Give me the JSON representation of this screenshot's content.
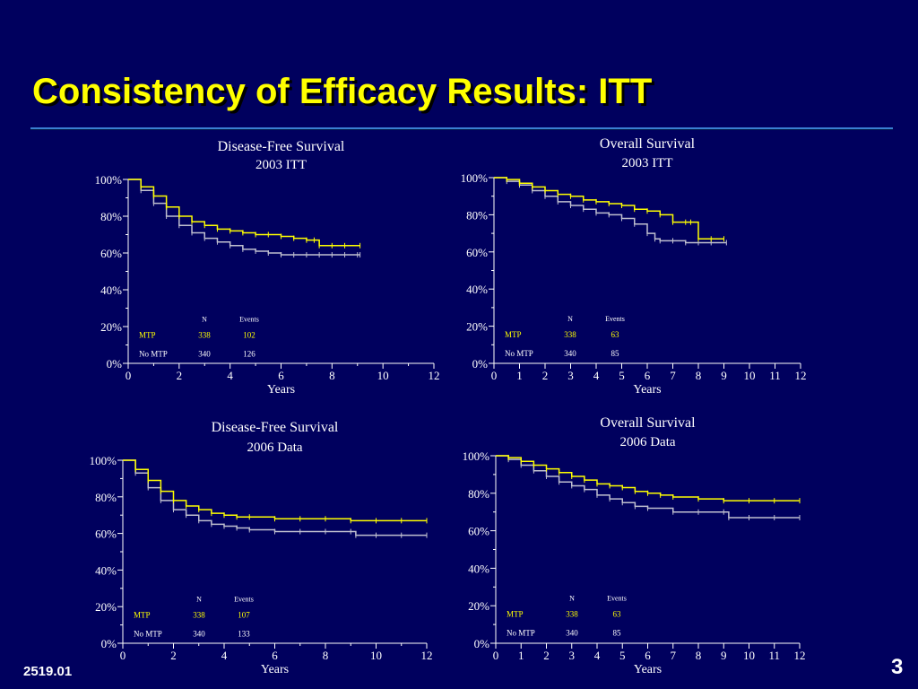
{
  "slide": {
    "title": "Consistency of Efficacy Results: ITT",
    "footer_code": "2519.01",
    "page_number": "3"
  },
  "colors": {
    "background": "#00005e",
    "title": "#ffff00",
    "mtp": "#ffff00",
    "no_mtp": "#bfbfcf",
    "axis": "#ffffff"
  },
  "chart_data": [
    {
      "type": "line",
      "title": "Disease-Free Survival",
      "subtitle": "2003 ITT",
      "xlabel": "Years",
      "ylabel": "",
      "xlim": [
        0,
        12
      ],
      "ylim": [
        0,
        100
      ],
      "x_ticks": [
        "0",
        "2",
        "4",
        "6",
        "8",
        "10",
        "12"
      ],
      "y_ticks": [
        "0%",
        "20%",
        "40%",
        "60%",
        "80%",
        "100%"
      ],
      "table": {
        "headers": [
          "N",
          "Events"
        ],
        "rows": [
          {
            "label": "MTP",
            "n": "338",
            "events": "102"
          },
          {
            "label": "No MTP",
            "n": "340",
            "events": "126"
          }
        ]
      },
      "series": [
        {
          "name": "MTP",
          "x": [
            0,
            0.5,
            1,
            1.5,
            2,
            2.5,
            3,
            3.5,
            4,
            4.5,
            5,
            5.5,
            6,
            6.5,
            7,
            7.3,
            7.5,
            8,
            8.5,
            9.1
          ],
          "y": [
            100,
            96,
            91,
            85,
            80,
            77,
            75,
            73,
            72,
            71,
            70,
            70,
            69,
            68,
            67,
            67,
            64,
            64,
            64,
            64
          ]
        },
        {
          "name": "No MTP",
          "x": [
            0,
            0.5,
            1,
            1.5,
            2,
            2.5,
            3,
            3.5,
            4,
            4.5,
            5,
            5.5,
            6,
            6.5,
            7,
            7.5,
            8,
            8.5,
            9,
            9.1
          ],
          "y": [
            100,
            94,
            87,
            80,
            75,
            71,
            68,
            66,
            64,
            62,
            61,
            60,
            59,
            59,
            59,
            59,
            59,
            59,
            59,
            59
          ]
        }
      ]
    },
    {
      "type": "line",
      "title": "Overall Survival",
      "subtitle": "2003 ITT",
      "xlabel": "Years",
      "ylabel": "",
      "xlim": [
        0,
        12
      ],
      "ylim": [
        0,
        100
      ],
      "x_ticks": [
        "0",
        "1",
        "2",
        "3",
        "4",
        "5",
        "6",
        "7",
        "8",
        "9",
        "10",
        "11",
        "12"
      ],
      "y_ticks": [
        "0%",
        "20%",
        "40%",
        "60%",
        "80%",
        "100%"
      ],
      "table": {
        "headers": [
          "N",
          "Events"
        ],
        "rows": [
          {
            "label": "MTP",
            "n": "338",
            "events": "63"
          },
          {
            "label": "No MTP",
            "n": "340",
            "events": "85"
          }
        ]
      },
      "series": [
        {
          "name": "MTP",
          "x": [
            0,
            0.5,
            1,
            1.5,
            2,
            2.5,
            3,
            3.5,
            4,
            4.5,
            5,
            5.5,
            6,
            6.5,
            7,
            7.5,
            7.7,
            8,
            8.5,
            9
          ],
          "y": [
            100,
            99,
            97,
            95,
            93,
            91,
            90,
            88,
            87,
            86,
            85,
            83,
            82,
            80,
            76,
            76,
            76,
            67,
            67,
            67
          ]
        },
        {
          "name": "No MTP",
          "x": [
            0,
            0.5,
            1,
            1.5,
            2,
            2.5,
            3,
            3.5,
            4,
            4.5,
            5,
            5.5,
            6,
            6.3,
            6.5,
            7,
            7.5,
            8,
            8.5,
            9.1
          ],
          "y": [
            100,
            98,
            96,
            93,
            90,
            87,
            85,
            83,
            81,
            80,
            78,
            75,
            70,
            67,
            66,
            66,
            65,
            65,
            65,
            65
          ]
        }
      ]
    },
    {
      "type": "line",
      "title": "Disease-Free Survival",
      "subtitle": "2006 Data",
      "xlabel": "Years",
      "ylabel": "",
      "xlim": [
        0,
        12
      ],
      "ylim": [
        0,
        100
      ],
      "x_ticks": [
        "0",
        "2",
        "4",
        "6",
        "8",
        "10",
        "12"
      ],
      "y_ticks": [
        "0%",
        "20%",
        "40%",
        "60%",
        "80%",
        "100%"
      ],
      "table": {
        "headers": [
          "N",
          "Events"
        ],
        "rows": [
          {
            "label": "MTP",
            "n": "338",
            "events": "107"
          },
          {
            "label": "No MTP",
            "n": "340",
            "events": "133"
          }
        ]
      },
      "series": [
        {
          "name": "MTP",
          "x": [
            0,
            0.5,
            1,
            1.5,
            2,
            2.5,
            3,
            3.5,
            4,
            4.5,
            5,
            6,
            7,
            8,
            9,
            10,
            11,
            12
          ],
          "y": [
            100,
            95,
            89,
            83,
            78,
            75,
            73,
            71,
            70,
            69,
            69,
            68,
            68,
            68,
            67,
            67,
            67,
            67
          ]
        },
        {
          "name": "No MTP",
          "x": [
            0,
            0.5,
            1,
            1.5,
            2,
            2.5,
            3,
            3.5,
            4,
            4.5,
            5,
            6,
            7,
            8,
            9,
            9.2,
            10,
            11,
            12
          ],
          "y": [
            100,
            93,
            85,
            78,
            73,
            70,
            67,
            65,
            64,
            63,
            62,
            61,
            61,
            61,
            61,
            59,
            59,
            59,
            59
          ]
        }
      ]
    },
    {
      "type": "line",
      "title": "Overall Survival",
      "subtitle": "2006 Data",
      "xlabel": "Years",
      "ylabel": "",
      "xlim": [
        0,
        12
      ],
      "ylim": [
        0,
        100
      ],
      "x_ticks": [
        "0",
        "1",
        "2",
        "3",
        "4",
        "5",
        "6",
        "7",
        "8",
        "9",
        "10",
        "11",
        "12"
      ],
      "y_ticks": [
        "0%",
        "20%",
        "40%",
        "60%",
        "80%",
        "100%"
      ],
      "table": {
        "headers": [
          "N",
          "Events"
        ],
        "rows": [
          {
            "label": "MTP",
            "n": "338",
            "events": "63"
          },
          {
            "label": "No MTP",
            "n": "340",
            "events": "85"
          }
        ]
      },
      "series": [
        {
          "name": "MTP",
          "x": [
            0,
            0.5,
            1,
            1.5,
            2,
            2.5,
            3,
            3.5,
            4,
            4.5,
            5,
            5.5,
            6,
            6.5,
            7,
            8,
            9,
            10,
            11,
            12
          ],
          "y": [
            100,
            99,
            97,
            95,
            93,
            91,
            89,
            87,
            85,
            84,
            83,
            81,
            80,
            79,
            78,
            77,
            76,
            76,
            76,
            76
          ]
        },
        {
          "name": "No MTP",
          "x": [
            0,
            0.5,
            1,
            1.5,
            2,
            2.5,
            3,
            3.5,
            4,
            4.5,
            5,
            5.5,
            6,
            7,
            8,
            9,
            9.2,
            10,
            11,
            12
          ],
          "y": [
            100,
            98,
            95,
            92,
            89,
            86,
            84,
            82,
            79,
            77,
            75,
            73,
            72,
            70,
            70,
            70,
            67,
            67,
            67,
            67
          ]
        }
      ]
    }
  ]
}
